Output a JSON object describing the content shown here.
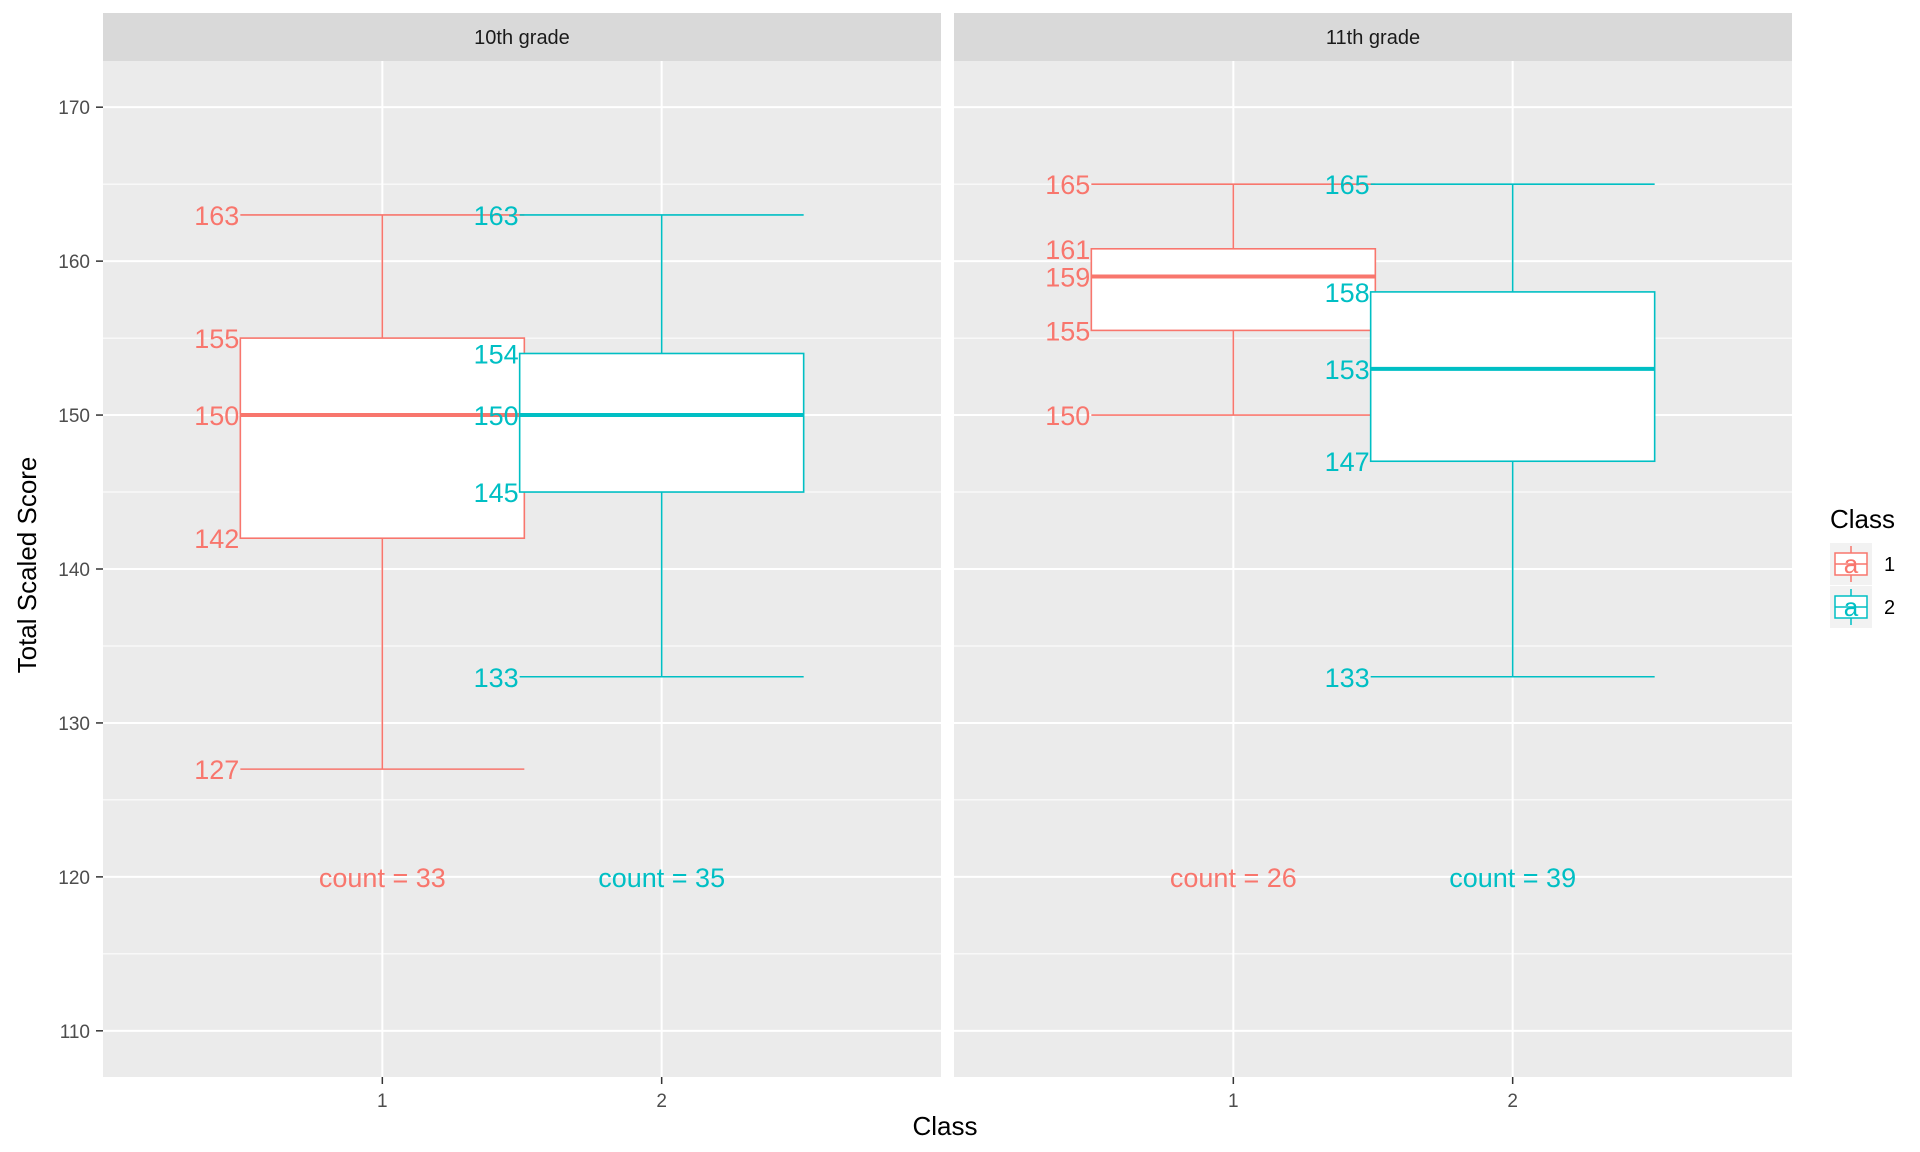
{
  "chart_data": {
    "type": "boxplot",
    "xlabel": "Class",
    "ylabel": "Total Scaled Score",
    "ylim": [
      107,
      173
    ],
    "yticks": [
      110,
      120,
      130,
      140,
      150,
      160,
      170
    ],
    "categories": [
      "1",
      "2"
    ],
    "legend": {
      "title": "Class",
      "placement": "right",
      "key_glyph": "a",
      "entries": [
        {
          "label": "1",
          "color": "#F8766D"
        },
        {
          "label": "2",
          "color": "#00BFC4"
        }
      ]
    },
    "panels": [
      {
        "strip": "10th grade",
        "boxes": [
          {
            "class": "1",
            "color": "#F8766D",
            "min": 127,
            "q1": 142,
            "median": 150,
            "q3": 155,
            "max": 163,
            "labels": [
              "127",
              "142",
              "150",
              "155",
              "163"
            ],
            "count_label": "count = 33"
          },
          {
            "class": "2",
            "color": "#00BFC4",
            "min": 133,
            "q1": 145,
            "median": 150,
            "q3": 154,
            "max": 163,
            "labels": [
              "133",
              "145",
              "150",
              "154",
              "163"
            ],
            "count_label": "count = 35"
          }
        ]
      },
      {
        "strip": "11th grade",
        "boxes": [
          {
            "class": "1",
            "color": "#F8766D",
            "min": 150,
            "q1": 155.5,
            "median": 159,
            "q3": 160.8,
            "max": 165,
            "labels": [
              "150",
              "155",
              "159",
              "161",
              "165"
            ],
            "count_label": "count = 26"
          },
          {
            "class": "2",
            "color": "#00BFC4",
            "min": 133,
            "q1": 147,
            "median": 153,
            "q3": 158,
            "max": 165,
            "labels": [
              "133",
              "147",
              "153",
              "158",
              "165"
            ],
            "count_label": "count = 39"
          }
        ]
      }
    ],
    "count_label_y": 120,
    "grid": true
  }
}
